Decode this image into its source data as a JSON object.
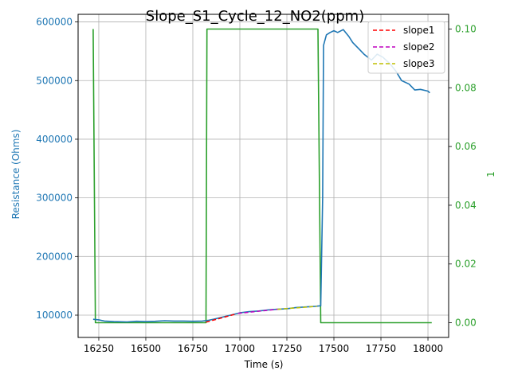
{
  "chart_data": {
    "type": "line",
    "title": "Slope_S1_Cycle_12_NO2(ppm)",
    "xlabel": "Time (s)",
    "ylabel": "Resistance (Ohms)",
    "y2label": "1",
    "xlim": [
      16140,
      18110
    ],
    "ylim": [
      62000,
      613000
    ],
    "y2lim": [
      -0.005,
      0.105
    ],
    "xticks": [
      16250,
      16500,
      16750,
      17000,
      17250,
      17500,
      17750,
      18000
    ],
    "yticks": [
      100000,
      200000,
      300000,
      400000,
      500000,
      600000
    ],
    "y2ticks": [
      0.0,
      0.02,
      0.04,
      0.06,
      0.08,
      0.1
    ],
    "xtick_labels": [
      "16250",
      "16500",
      "16750",
      "17000",
      "17250",
      "17500",
      "17750",
      "18000"
    ],
    "ytick_labels": [
      "100000",
      "200000",
      "300000",
      "400000",
      "500000",
      "600000"
    ],
    "y2tick_labels": [
      "0.00",
      "0.02",
      "0.04",
      "0.06",
      "0.08",
      "0.10"
    ],
    "grid": true,
    "legend_position": "top-right",
    "colors": {
      "resistance": "#1f77b4",
      "gas": "#2ca02c",
      "slope1": "#ff0000",
      "slope2": "#bf00bf",
      "slope3": "#bfbf00"
    },
    "series": [
      {
        "key": "resistance",
        "axis": "left",
        "style": "solid",
        "x": [
          16220,
          16250,
          16280,
          16330,
          16400,
          16450,
          16500,
          16550,
          16600,
          16650,
          16700,
          16750,
          16800,
          16830,
          16860,
          16900,
          16950,
          17000,
          17050,
          17100,
          17150,
          17200,
          17250,
          17300,
          17350,
          17400,
          17430,
          17440,
          17445,
          17460,
          17480,
          17500,
          17520,
          17550,
          17580,
          17600,
          17630,
          17660,
          17700,
          17730,
          17760,
          17800,
          17830,
          17860,
          17900,
          17930,
          17960,
          18000,
          18010
        ],
        "values": [
          93000,
          92000,
          90000,
          89000,
          88500,
          89500,
          89000,
          89500,
          90500,
          90000,
          90000,
          89500,
          90000,
          91000,
          93000,
          96000,
          100000,
          104000,
          106000,
          107000,
          109000,
          110000,
          111000,
          113000,
          114000,
          115000,
          116000,
          300000,
          560000,
          578000,
          582000,
          585000,
          582000,
          587000,
          575000,
          565000,
          555000,
          545000,
          535000,
          545000,
          540000,
          528000,
          516000,
          500000,
          494000,
          484000,
          485000,
          482000,
          479000
        ]
      },
      {
        "key": "gas",
        "axis": "right",
        "style": "solid",
        "x": [
          16220,
          16232,
          16232,
          16820,
          16825,
          17415,
          17430,
          18020
        ],
        "values": [
          0.1,
          0.0,
          0.0,
          0.0,
          0.1,
          0.1,
          0.0,
          0.0
        ]
      },
      {
        "key": "slope1",
        "name": "slope1",
        "axis": "left",
        "style": "dashed",
        "x": [
          16820,
          16980
        ],
        "values": [
          88000,
          102000
        ]
      },
      {
        "key": "slope2",
        "name": "slope2",
        "axis": "left",
        "style": "dashed",
        "x": [
          16990,
          17200
        ],
        "values": [
          103000,
          110000
        ]
      },
      {
        "key": "slope3",
        "name": "slope3",
        "axis": "left",
        "style": "dashed",
        "x": [
          17200,
          17410
        ],
        "values": [
          110000,
          115000
        ]
      }
    ]
  }
}
